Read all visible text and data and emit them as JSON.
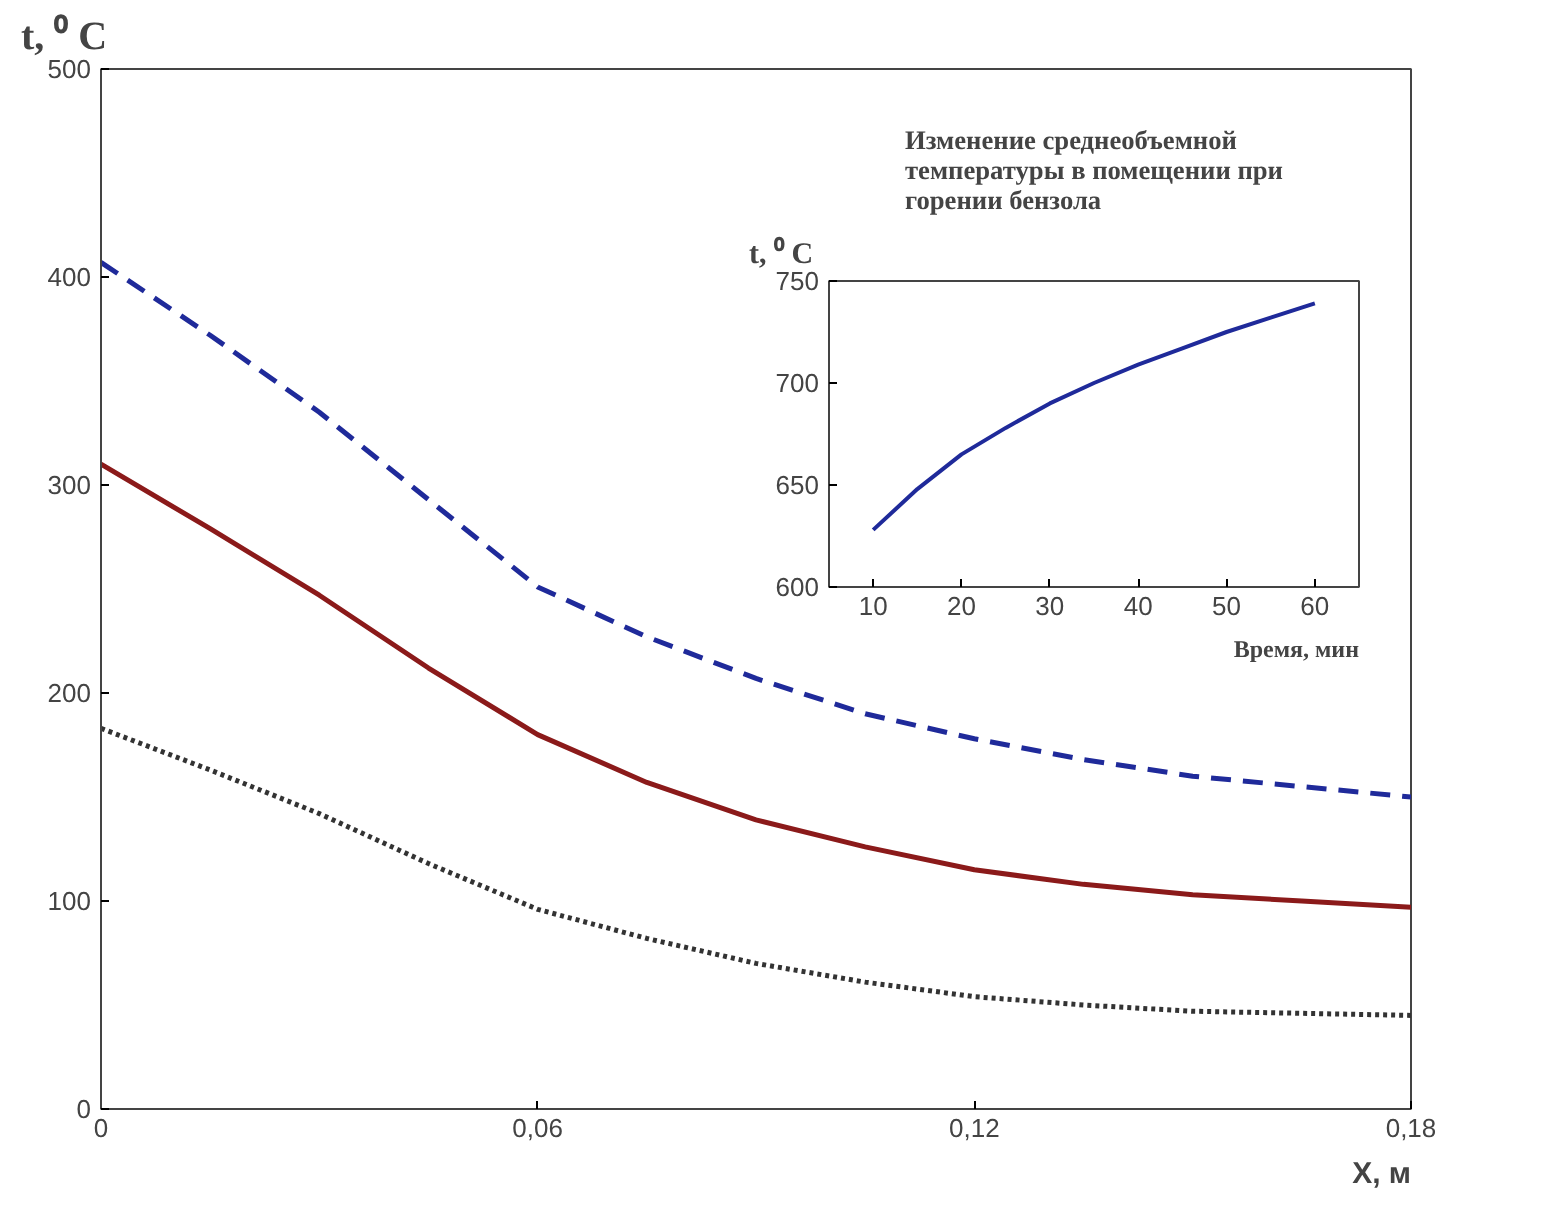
{
  "chart_data": [
    {
      "type": "line",
      "ylabel": "t, ⁰ C",
      "xlabel": "X, м",
      "x": [
        0,
        0.015,
        0.03,
        0.045,
        0.06,
        0.075,
        0.09,
        0.105,
        0.12,
        0.135,
        0.15,
        0.165,
        0.18
      ],
      "xlim": [
        0,
        0.18
      ],
      "ylim": [
        0,
        500
      ],
      "xticks": [
        0,
        {
          "value": 0.06,
          "label": "0,06"
        },
        {
          "value": 0.12,
          "label": "0,12"
        },
        {
          "value": 0.18,
          "label": "0,18"
        }
      ],
      "yticks": [
        0,
        100,
        200,
        300,
        400,
        500
      ],
      "grid": false,
      "series": [
        {
          "color": "#1f2a9a",
          "line_style": "dashed",
          "values": [
            407,
            372,
            335,
            293,
            251,
            227,
            207,
            190,
            178,
            168,
            160,
            155,
            150
          ]
        },
        {
          "color": "#8b1a1a",
          "line_style": "solid",
          "values": [
            310,
            279,
            247,
            212,
            180,
            157,
            139,
            126,
            115,
            108,
            103,
            100,
            97
          ]
        },
        {
          "color": "#333333",
          "line_style": "dotted",
          "values": [
            183,
            163,
            142,
            118,
            96,
            82,
            70,
            61,
            54,
            50,
            47,
            46,
            45
          ]
        }
      ]
    },
    {
      "type": "line",
      "title": "Изменение среднеобъемной\nтемпературы в помещении при\nгорении бензола",
      "ylabel": "t, ⁰ C",
      "xlabel": "Время, мин",
      "x": [
        10,
        15,
        20,
        25,
        30,
        35,
        40,
        45,
        50,
        55,
        60
      ],
      "xlim": [
        5,
        65
      ],
      "ylim": [
        600,
        750
      ],
      "xticks": [
        10,
        20,
        30,
        40,
        50,
        60
      ],
      "yticks": [
        600,
        650,
        700,
        750
      ],
      "grid": false,
      "series": [
        {
          "color": "#1f2a9a",
          "line_style": "solid",
          "values": [
            628,
            648,
            665,
            678,
            690,
            700,
            709,
            717,
            725,
            732,
            739
          ]
        }
      ]
    }
  ]
}
